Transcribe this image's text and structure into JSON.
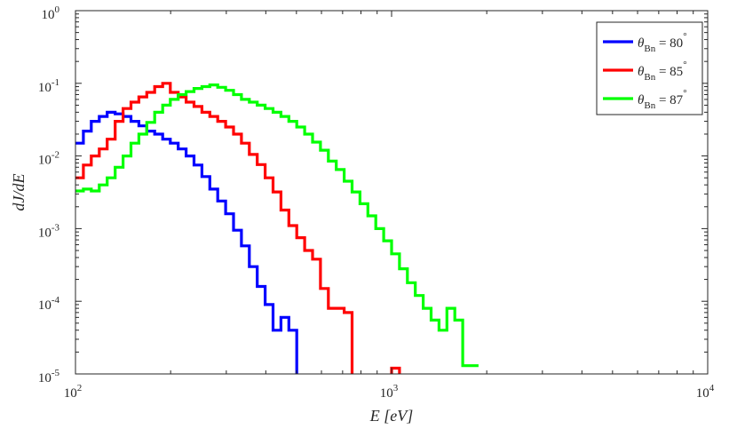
{
  "chart_data": {
    "type": "line",
    "title": "",
    "xlabel": "E [eV]",
    "ylabel": "dJ/dE",
    "x_scale": "log",
    "y_scale": "log",
    "xlim": [
      100,
      10000
    ],
    "ylim": [
      1e-05,
      1
    ],
    "grid": false,
    "legend_position": "top-right",
    "x_tick_labels": [
      {
        "value": 100,
        "base": "10",
        "exp": "2"
      },
      {
        "value": 1000,
        "base": "10",
        "exp": "3"
      },
      {
        "value": 10000,
        "base": "10",
        "exp": "4"
      }
    ],
    "y_tick_labels": [
      {
        "value": 1,
        "base": "10",
        "exp": "0"
      },
      {
        "value": 0.1,
        "base": "10",
        "exp": "-1"
      },
      {
        "value": 0.01,
        "base": "10",
        "exp": "-2"
      },
      {
        "value": 0.001,
        "base": "10",
        "exp": "-3"
      },
      {
        "value": 0.0001,
        "base": "10",
        "exp": "-4"
      },
      {
        "value": 1e-05,
        "base": "10",
        "exp": "-5"
      }
    ],
    "legend": [
      {
        "symbol": "θ",
        "sub": "Bn",
        "rest": " = 80",
        "deg": "°"
      },
      {
        "symbol": "θ",
        "sub": "Bn",
        "rest": " = 85",
        "deg": "°"
      },
      {
        "symbol": "θ",
        "sub": "Bn",
        "rest": " = 87",
        "deg": "°"
      }
    ],
    "series": [
      {
        "name": "θBn = 80°",
        "color": "#0000ff",
        "bin_edges": [
          100,
          105.9,
          112.2,
          118.9,
          126.0,
          133.5,
          141.4,
          149.8,
          158.7,
          168.1,
          178.1,
          188.7,
          199.5,
          211.3,
          223.9,
          237.1,
          251.2,
          266.1,
          281.8,
          298.5,
          316.2,
          335.0,
          354.8,
          375.8,
          398.1,
          421.7,
          446.7,
          473.2,
          501.2,
          530.9
        ],
        "values": [
          0.015,
          0.022,
          0.03,
          0.035,
          0.04,
          0.038,
          0.035,
          0.03,
          0.026,
          0.022,
          0.02,
          0.017,
          0.015,
          0.0125,
          0.01,
          0.0075,
          0.0052,
          0.0035,
          0.0024,
          0.0016,
          0.00095,
          0.00058,
          0.0003,
          0.00016,
          9e-05,
          4e-05,
          6e-05,
          4e-05,
          5e-06
        ]
      },
      {
        "name": "θBn = 85°",
        "color": "#ff0000",
        "bin_edges": [
          100,
          105.9,
          112.2,
          118.9,
          126.0,
          133.5,
          141.4,
          149.8,
          158.7,
          168.1,
          178.1,
          188.7,
          199.5,
          211.3,
          223.9,
          237.1,
          251.2,
          266.1,
          281.8,
          298.5,
          316.2,
          335.0,
          354.8,
          375.8,
          398.1,
          421.7,
          446.7,
          473.2,
          501.2,
          530.9,
          562.3,
          595.7,
          631.0,
          668.3,
          707.9,
          749.9,
          794.3,
          841.4,
          891.3,
          944.1,
          1000,
          1059.3,
          1122.0,
          1188.5
        ],
        "values": [
          0.005,
          0.0075,
          0.01,
          0.0125,
          0.017,
          0.03,
          0.045,
          0.055,
          0.065,
          0.075,
          0.09,
          0.1,
          0.075,
          0.065,
          0.055,
          0.048,
          0.04,
          0.035,
          0.03,
          0.025,
          0.02,
          0.015,
          0.0105,
          0.0076,
          0.005,
          0.0032,
          0.0018,
          0.0011,
          0.00075,
          0.0005,
          0.00038,
          0.00015,
          8e-05,
          8e-05,
          7e-05,
          5e-06,
          5e-06,
          5e-06,
          5e-06,
          5e-06,
          1.2e-05,
          5e-06,
          5e-06
        ]
      },
      {
        "name": "θBn = 87°",
        "color": "#00ff00",
        "bin_edges": [
          100,
          105.9,
          112.2,
          118.9,
          126.0,
          133.5,
          141.4,
          149.8,
          158.7,
          168.1,
          178.1,
          188.7,
          199.5,
          211.3,
          223.9,
          237.1,
          251.2,
          266.1,
          281.8,
          298.5,
          316.2,
          335.0,
          354.8,
          375.8,
          398.1,
          421.7,
          446.7,
          473.2,
          501.2,
          530.9,
          562.3,
          595.7,
          631.0,
          668.3,
          707.9,
          749.9,
          794.3,
          841.4,
          891.3,
          944.1,
          1000,
          1059.3,
          1122.0,
          1188.5,
          1258.9,
          1333.5,
          1412.5,
          1496.2,
          1584.9,
          1678.8,
          1778.3,
          1883.6
        ],
        "values": [
          0.0033,
          0.0035,
          0.0033,
          0.004,
          0.005,
          0.007,
          0.01,
          0.015,
          0.02,
          0.029,
          0.04,
          0.05,
          0.06,
          0.07,
          0.077,
          0.085,
          0.09,
          0.095,
          0.088,
          0.08,
          0.07,
          0.06,
          0.055,
          0.05,
          0.045,
          0.04,
          0.035,
          0.03,
          0.025,
          0.02,
          0.0155,
          0.012,
          0.0085,
          0.0065,
          0.0045,
          0.0032,
          0.0022,
          0.0015,
          0.001,
          0.00068,
          0.00045,
          0.00028,
          0.00018,
          0.00012,
          8e-05,
          5.5e-05,
          4e-05,
          8e-05,
          5.5e-05,
          1.3e-05,
          1.3e-05
        ]
      }
    ]
  }
}
